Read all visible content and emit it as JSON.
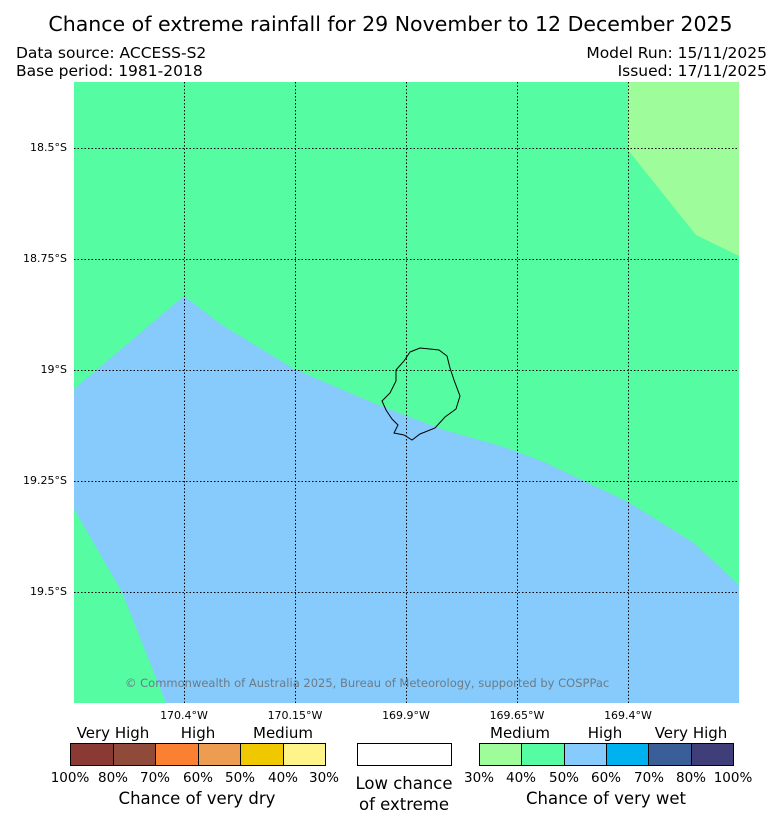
{
  "title": "Chance of extreme rainfall for 29 November to 12 December 2025",
  "info": {
    "data_source": "Data source: ACCESS-S2",
    "base_period": "Base period: 1981-2018",
    "model_run": "Model Run: 15/11/2025",
    "issued": "Issued: 17/11/2025"
  },
  "map": {
    "latitude_labels": [
      "18.5°S",
      "18.75°S",
      "19°S",
      "19.25°S",
      "19.5°S"
    ],
    "longitude_labels": [
      "170.4°W",
      "170.15°W",
      "169.9°W",
      "169.65°W",
      "169.4°W"
    ],
    "copyright": "© Commonwealth of Australia 2025, Bureau of Meteorology, supported by COSPPac",
    "regions": [
      {
        "name": "wet-medium-region",
        "category": "Chance of very wet: Medium (30–40%)",
        "color": "#9efc9a"
      },
      {
        "name": "wet-40-50-region",
        "category": "Chance of very wet: 40–50%",
        "color": "#55fca1"
      },
      {
        "name": "wet-high-region",
        "category": "Chance of very wet: High (50–60%)",
        "color": "#87cafc"
      }
    ],
    "island": "Niue outline"
  },
  "legend": {
    "dry": {
      "categories": [
        "Very High",
        "High",
        "Medium"
      ],
      "colors": [
        "#8b3a33",
        "#8f4a39",
        "#fc8031",
        "#ec9d51",
        "#f0c800",
        "#fff489"
      ],
      "ticks": [
        "100%",
        "80%",
        "70%",
        "60%",
        "50%",
        "40%",
        "30%"
      ],
      "caption": "Chance of very dry"
    },
    "neutral": {
      "color": "#ffffff",
      "caption_line1": "Low chance",
      "caption_line2": "of extreme"
    },
    "wet": {
      "categories": [
        "Medium",
        "High",
        "Very High"
      ],
      "colors": [
        "#9efc9a",
        "#55fca1",
        "#87cafc",
        "#00b1f0",
        "#3a5e98",
        "#403e78"
      ],
      "ticks": [
        "30%",
        "40%",
        "50%",
        "60%",
        "70%",
        "80%",
        "100%"
      ],
      "caption": "Chance of very wet"
    }
  }
}
